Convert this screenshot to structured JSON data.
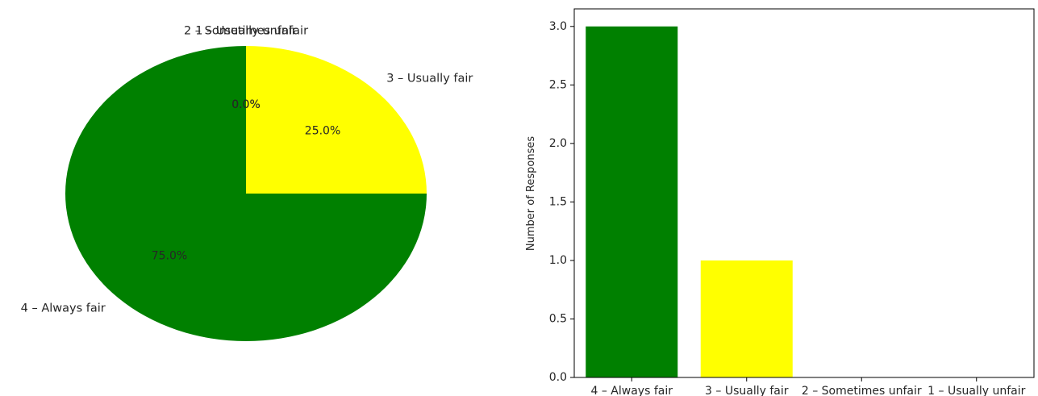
{
  "chart_data": [
    {
      "type": "pie",
      "categories": [
        "4 – Always fair",
        "3 – Usually fair",
        "2 – Sometimes unfair",
        "1 – Usually unfair"
      ],
      "values": [
        3,
        1,
        0,
        0
      ],
      "percent_labels": [
        "75.0%",
        "25.0%",
        "0.0%",
        "0.0%"
      ],
      "colors": [
        "#008000",
        "#ffff00",
        "#ffa500",
        "#ff0000"
      ],
      "start_angle_deg": 90,
      "direction": "counterclockwise"
    },
    {
      "type": "bar",
      "categories": [
        "4 – Always fair",
        "3 – Usually fair",
        "2 – Sometimes unfair",
        "1 – Usually unfair"
      ],
      "values": [
        3,
        1,
        0,
        0
      ],
      "colors": [
        "#008000",
        "#ffff00",
        "#ffa500",
        "#ff0000"
      ],
      "xlabel": "",
      "ylabel": "Number of Responses",
      "ylim": [
        0,
        3.15
      ],
      "yticks": [
        "0.0",
        "0.5",
        "1.0",
        "1.5",
        "2.0",
        "2.5",
        "3.0"
      ],
      "grid": false
    }
  ]
}
